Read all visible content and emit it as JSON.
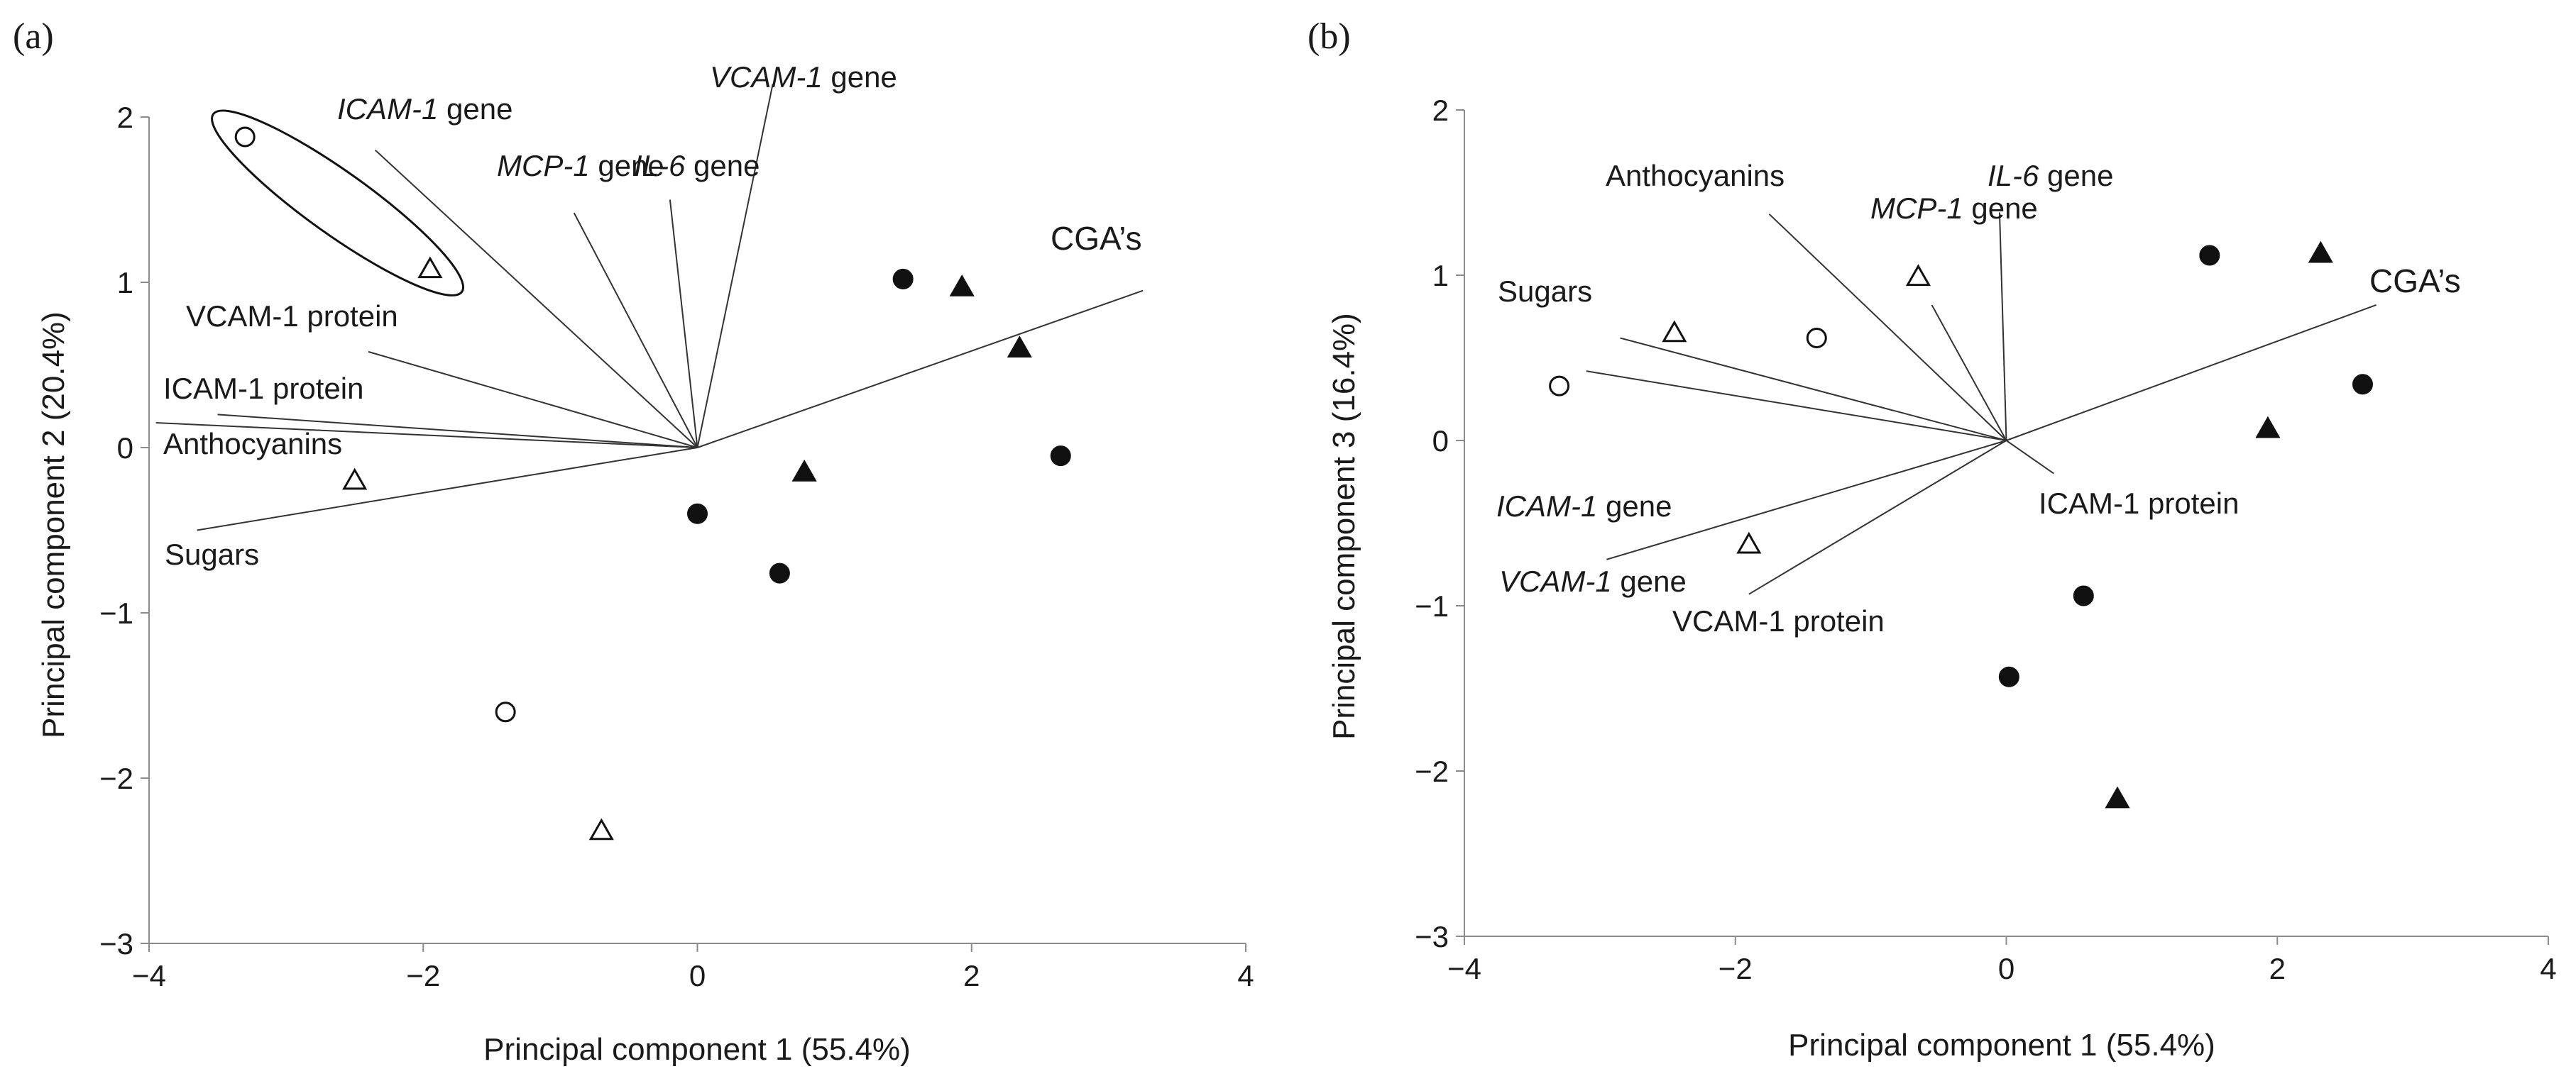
{
  "chart_data": [
    {
      "type": "scatter",
      "panel_label": "(a)",
      "xlabel": "Principal component 1 (55.4%)",
      "ylabel": "Principal component 2 (20.4%)",
      "xlim": [
        -4,
        4
      ],
      "ylim": [
        -3,
        2
      ],
      "xticks": [
        -4,
        -2,
        0,
        2,
        4
      ],
      "yticks": [
        -3,
        -2,
        -1,
        0,
        1,
        2
      ],
      "grid": false,
      "series": [
        {
          "marker": "open-circle",
          "points": [
            [
              -3.3,
              1.88
            ],
            [
              -1.4,
              -1.6
            ]
          ]
        },
        {
          "marker": "open-triangle",
          "points": [
            [
              -1.95,
              1.08
            ],
            [
              -2.5,
              -0.2
            ],
            [
              -0.7,
              -2.32
            ]
          ]
        },
        {
          "marker": "filled-circle",
          "points": [
            [
              1.5,
              1.02
            ],
            [
              2.65,
              -0.05
            ],
            [
              0.0,
              -0.4
            ],
            [
              0.6,
              -0.76
            ]
          ]
        },
        {
          "marker": "filled-triangle",
          "points": [
            [
              1.93,
              0.97
            ],
            [
              2.35,
              0.6
            ],
            [
              0.78,
              -0.15
            ]
          ]
        }
      ],
      "loadings": [
        {
          "parts": [
            {
              "text": "ICAM-1",
              "italic": true
            },
            {
              "text": " gene",
              "italic": false
            }
          ],
          "end": [
            -2.35,
            1.8
          ]
        },
        {
          "parts": [
            {
              "text": "MCP-1",
              "italic": true
            },
            {
              "text": " gene",
              "italic": false
            }
          ],
          "end": [
            -0.9,
            1.42
          ]
        },
        {
          "parts": [
            {
              "text": "IL-6",
              "italic": true
            },
            {
              "text": " gene",
              "italic": false
            }
          ],
          "end": [
            -0.2,
            1.5
          ]
        },
        {
          "parts": [
            {
              "text": "VCAM-1",
              "italic": true
            },
            {
              "text": " gene",
              "italic": false
            }
          ],
          "end": [
            0.55,
            2.2
          ]
        },
        {
          "parts": [
            {
              "text": "VCAM-1 protein",
              "italic": false
            }
          ],
          "end": [
            -2.4,
            0.58
          ]
        },
        {
          "parts": [
            {
              "text": "ICAM-1 protein",
              "italic": false
            }
          ],
          "end": [
            -3.5,
            0.2
          ]
        },
        {
          "parts": [
            {
              "text": "Anthocyanins",
              "italic": false
            }
          ],
          "end": [
            -3.95,
            0.15
          ]
        },
        {
          "parts": [
            {
              "text": "Sugars",
              "italic": false
            }
          ],
          "end": [
            -3.65,
            -0.5
          ]
        },
        {
          "parts": [
            {
              "text": "CGA’s",
              "italic": false
            }
          ],
          "end": [
            3.25,
            0.95
          ]
        }
      ],
      "annotations": [
        {
          "type": "ellipse",
          "encloses": [
            [
              -3.3,
              1.88
            ],
            [
              -1.95,
              1.08
            ]
          ]
        }
      ]
    },
    {
      "type": "scatter",
      "panel_label": "(b)",
      "xlabel": "Principal component 1 (55.4%)",
      "ylabel": "Principal component 3 (16.4%)",
      "xlim": [
        -4,
        4
      ],
      "ylim": [
        -3,
        2
      ],
      "xticks": [
        -4,
        -2,
        0,
        2,
        4
      ],
      "yticks": [
        -3,
        -2,
        -1,
        0,
        1,
        2
      ],
      "grid": false,
      "series": [
        {
          "marker": "open-circle",
          "points": [
            [
              -3.3,
              0.33
            ],
            [
              -1.4,
              0.62
            ]
          ]
        },
        {
          "marker": "open-triangle",
          "points": [
            [
              -2.45,
              0.65
            ],
            [
              -0.65,
              0.99
            ],
            [
              -1.9,
              -0.63
            ]
          ]
        },
        {
          "marker": "filled-circle",
          "points": [
            [
              1.5,
              1.12
            ],
            [
              2.63,
              0.34
            ],
            [
              0.57,
              -0.94
            ],
            [
              0.02,
              -1.43
            ]
          ]
        },
        {
          "marker": "filled-triangle",
          "points": [
            [
              2.32,
              1.13
            ],
            [
              1.93,
              0.07
            ],
            [
              0.82,
              -2.17
            ]
          ]
        }
      ],
      "loadings": [
        {
          "parts": [
            {
              "text": "VCAM-1 protein",
              "italic": false
            }
          ],
          "end": [
            -1.75,
            1.37
          ]
        },
        {
          "parts": [
            {
              "text": "MCP-1",
              "italic": true
            },
            {
              "text": " gene",
              "italic": false
            }
          ],
          "end": [
            -0.55,
            0.82
          ]
        },
        {
          "parts": [
            {
              "text": "IL-6",
              "italic": true
            },
            {
              "text": " gene",
              "italic": false
            }
          ],
          "end": [
            -0.05,
            1.38
          ]
        },
        {
          "parts": [
            {
              "text": "ICAM-1 protein",
              "italic": false
            }
          ],
          "end": [
            -2.85,
            0.62
          ]
        },
        {
          "parts": [
            {
              "text": "Anthocyanins",
              "italic": false
            }
          ],
          "end": [
            -3.1,
            0.42
          ]
        },
        {
          "parts": [
            {
              "text": "Sugars",
              "italic": false
            }
          ],
          "end": [
            -2.95,
            -0.72
          ]
        },
        {
          "parts": [
            {
              "text": "ICAM-1",
              "italic": true
            },
            {
              "text": " gene",
              "italic": false
            }
          ],
          "end": [
            -1.9,
            -0.93
          ]
        },
        {
          "parts": [
            {
              "text": "VCAM-1",
              "italic": true
            },
            {
              "text": " gene",
              "italic": false
            }
          ],
          "end": [
            0.35,
            -0.2
          ]
        },
        {
          "parts": [
            {
              "text": "CGA’s",
              "italic": false
            }
          ],
          "end": [
            2.73,
            0.82
          ]
        }
      ],
      "annotations": []
    }
  ]
}
